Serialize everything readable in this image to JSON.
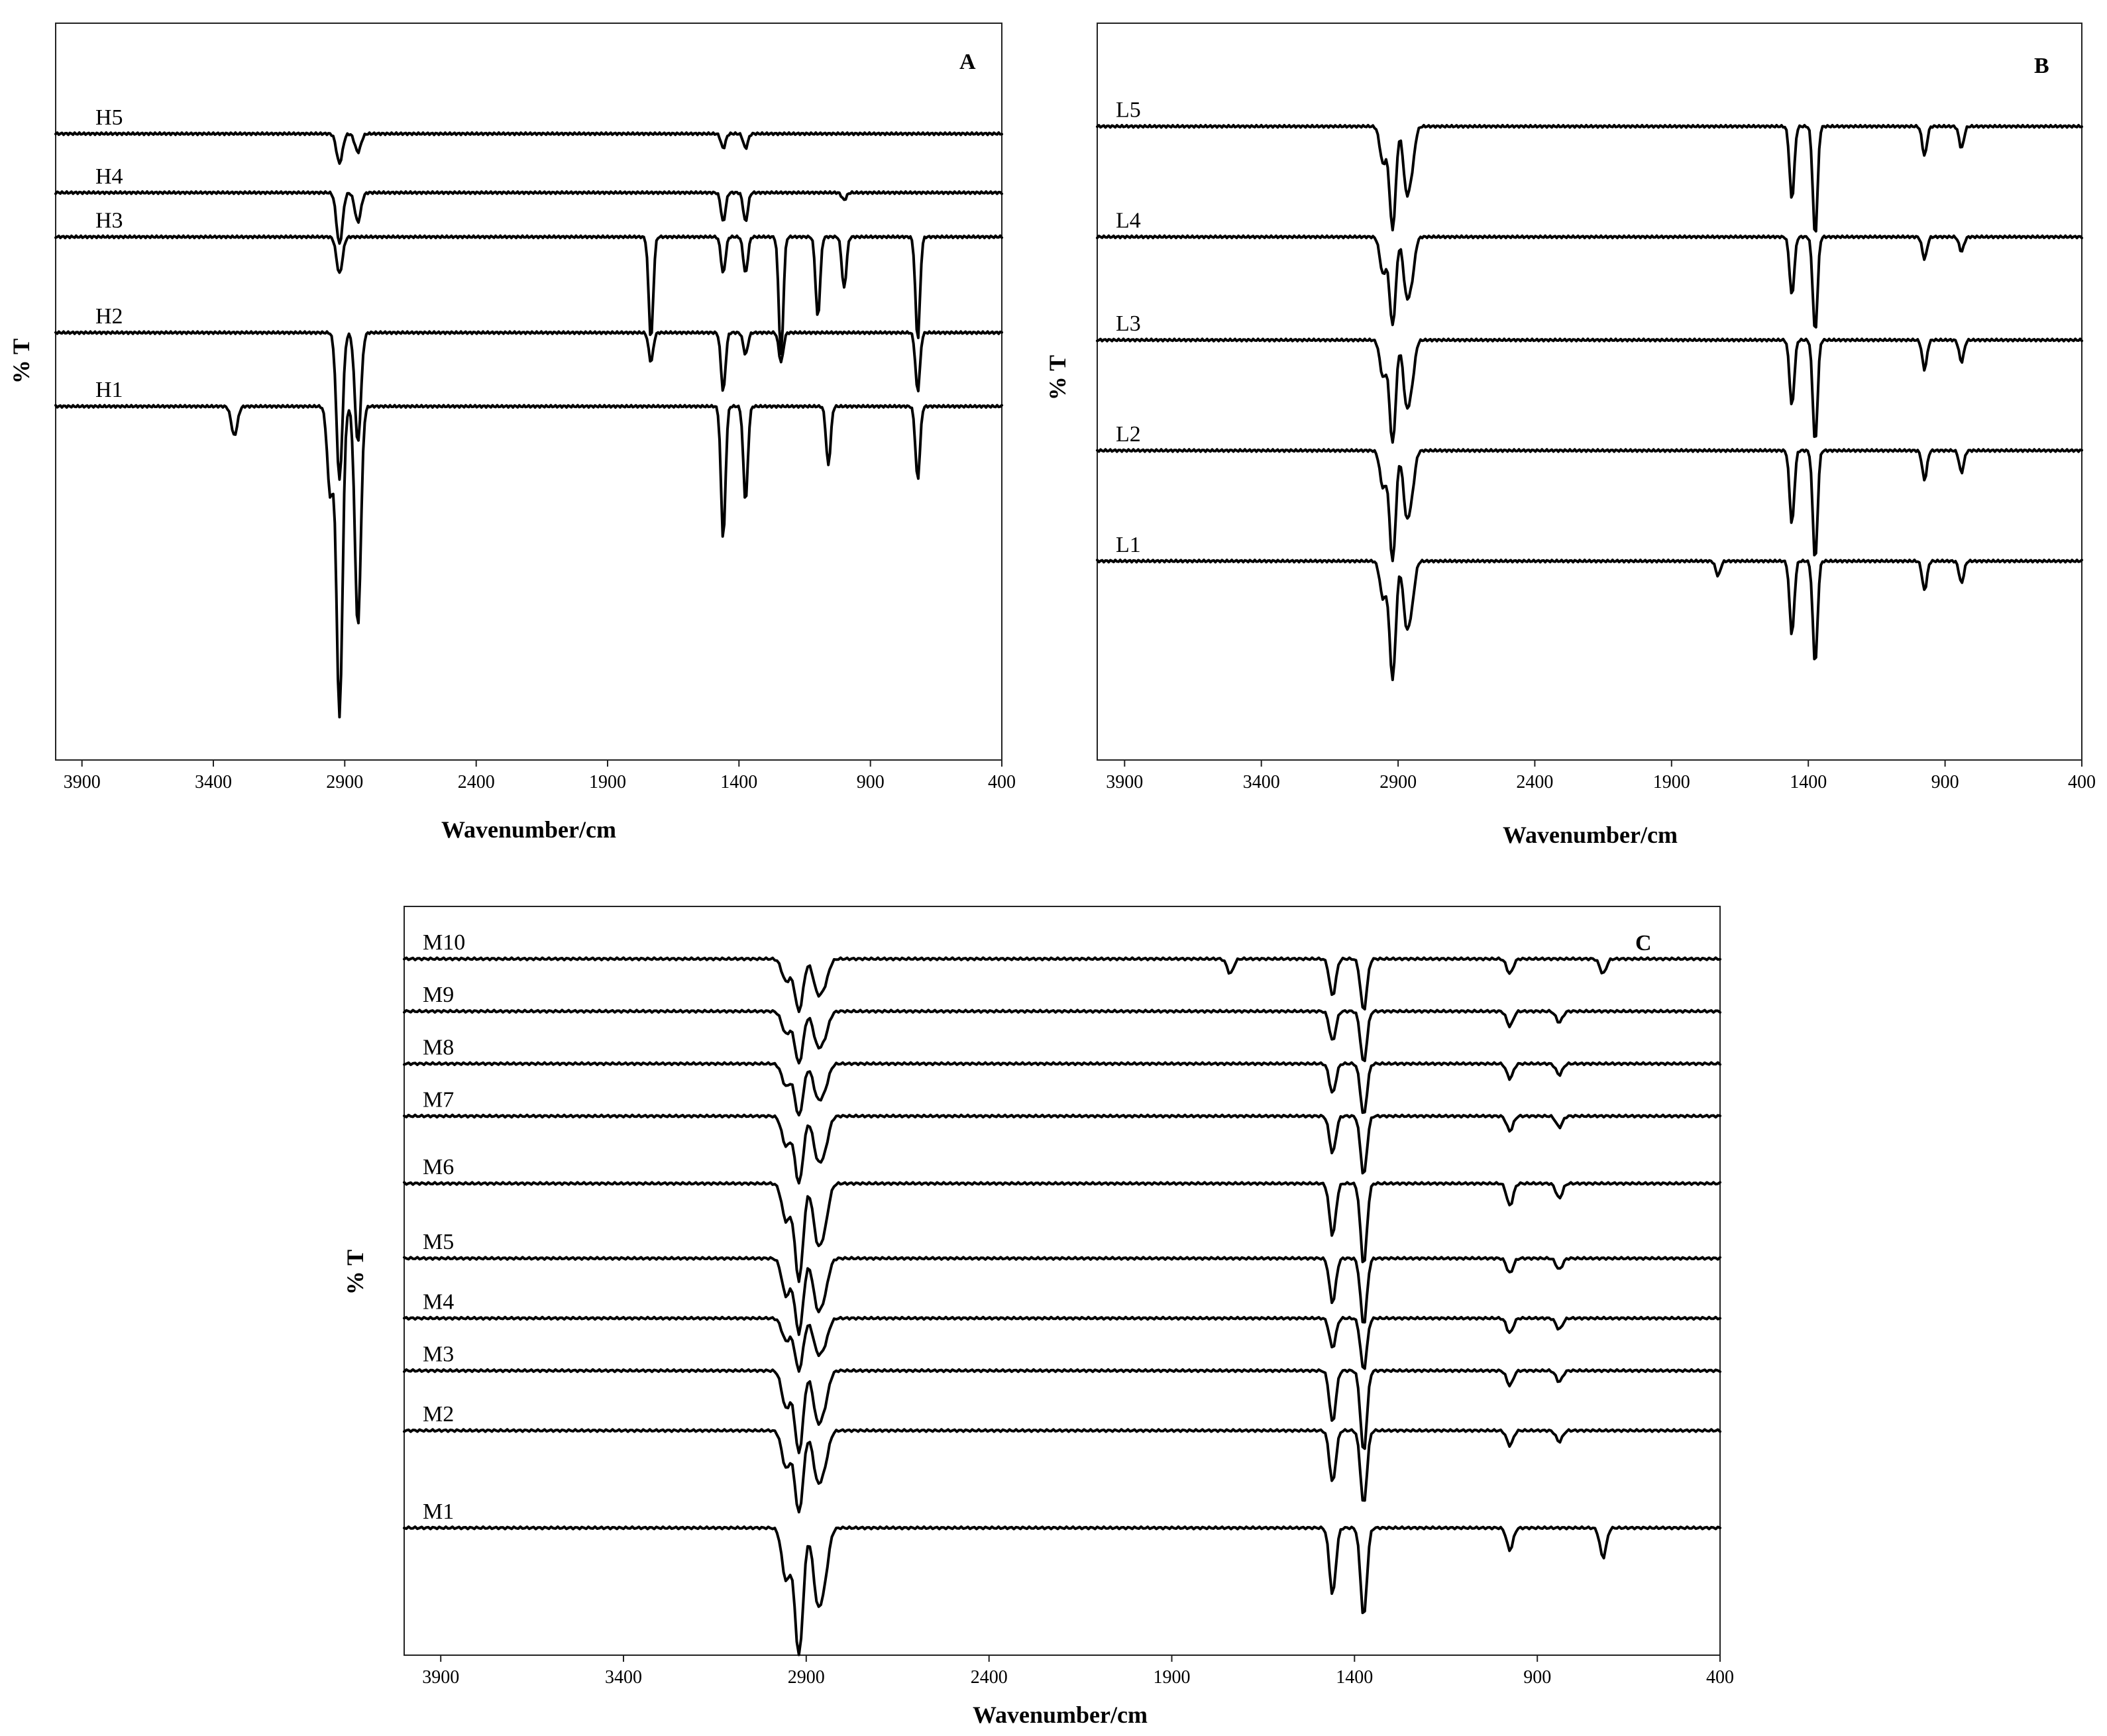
{
  "chart_data": [
    {
      "type": "line",
      "panel": "A",
      "xlabel": "Wavenumber/cm",
      "ylabel": "% T",
      "xlim": [
        4000,
        400
      ],
      "x_reversed": true,
      "xticks": [
        3900,
        3400,
        2900,
        2400,
        1900,
        1400,
        900,
        400
      ],
      "ylim": [
        0,
        100
      ],
      "grid": false,
      "legend": "inline labels",
      "series": [
        {
          "name": "H5",
          "baseline": 85,
          "peaks": [
            [
              2920,
              4
            ],
            [
              2850,
              2.5
            ],
            [
              1460,
              2
            ],
            [
              1375,
              2
            ]
          ]
        },
        {
          "name": "H4",
          "baseline": 77,
          "peaks": [
            [
              2920,
              7
            ],
            [
              2850,
              4
            ],
            [
              1460,
              4
            ],
            [
              1375,
              4
            ],
            [
              1000,
              1
            ]
          ]
        },
        {
          "name": "H3",
          "baseline": 71,
          "peaks": [
            [
              2920,
              5
            ],
            [
              1735,
              14
            ],
            [
              1460,
              5
            ],
            [
              1375,
              5
            ],
            [
              1240,
              16
            ],
            [
              1100,
              11
            ],
            [
              1000,
              7
            ],
            [
              720,
              14
            ]
          ]
        },
        {
          "name": "H2",
          "baseline": 58,
          "peaks": [
            [
              2920,
              20
            ],
            [
              2850,
              15
            ],
            [
              1735,
              4
            ],
            [
              1460,
              8
            ],
            [
              1375,
              3
            ],
            [
              1240,
              4
            ],
            [
              720,
              8
            ]
          ]
        },
        {
          "name": "H1",
          "baseline": 48,
          "peaks": [
            [
              3320,
              4
            ],
            [
              2955,
              12
            ],
            [
              2920,
              42
            ],
            [
              2850,
              30
            ],
            [
              1460,
              18
            ],
            [
              1375,
              13
            ],
            [
              1060,
              8
            ],
            [
              720,
              10
            ]
          ]
        }
      ]
    },
    {
      "type": "line",
      "panel": "B",
      "xlabel": "Wavenumber/cm",
      "ylabel": "% T",
      "xlim": [
        4000,
        400
      ],
      "x_reversed": true,
      "xticks": [
        3900,
        3400,
        2900,
        2400,
        1900,
        1400,
        900,
        400
      ],
      "ylim": [
        0,
        100
      ],
      "grid": false,
      "legend": "inline labels",
      "series": [
        {
          "name": "L5",
          "baseline": 86,
          "peaks": [
            [
              2955,
              5
            ],
            [
              2920,
              14
            ],
            [
              2870,
              8
            ],
            [
              2850,
              5
            ],
            [
              1460,
              10
            ],
            [
              1375,
              15
            ],
            [
              975,
              4
            ],
            [
              840,
              3
            ]
          ]
        },
        {
          "name": "L4",
          "baseline": 71,
          "peaks": [
            [
              2955,
              5
            ],
            [
              2920,
              12
            ],
            [
              2870,
              7
            ],
            [
              2850,
              5
            ],
            [
              1460,
              8
            ],
            [
              1375,
              13
            ],
            [
              975,
              3
            ],
            [
              840,
              2
            ]
          ]
        },
        {
          "name": "L3",
          "baseline": 57,
          "peaks": [
            [
              2955,
              5
            ],
            [
              2920,
              14
            ],
            [
              2870,
              8
            ],
            [
              2850,
              5
            ],
            [
              1460,
              9
            ],
            [
              1375,
              14
            ],
            [
              975,
              4
            ],
            [
              840,
              3
            ]
          ]
        },
        {
          "name": "L2",
          "baseline": 42,
          "peaks": [
            [
              2955,
              5
            ],
            [
              2920,
              15
            ],
            [
              2870,
              8
            ],
            [
              2850,
              5
            ],
            [
              1460,
              10
            ],
            [
              1375,
              15
            ],
            [
              975,
              4
            ],
            [
              840,
              3
            ]
          ]
        },
        {
          "name": "L1",
          "baseline": 27,
          "peaks": [
            [
              2955,
              5
            ],
            [
              2920,
              16
            ],
            [
              2870,
              8
            ],
            [
              2850,
              5
            ],
            [
              1730,
              2
            ],
            [
              1460,
              10
            ],
            [
              1375,
              14
            ],
            [
              975,
              4
            ],
            [
              840,
              3
            ]
          ]
        }
      ]
    },
    {
      "type": "line",
      "panel": "C",
      "xlabel": "Wavenumber/cm",
      "ylabel": "% T",
      "xlim": [
        4000,
        400
      ],
      "x_reversed": true,
      "xticks": [
        3900,
        3400,
        2900,
        2400,
        1900,
        1400,
        900,
        400
      ],
      "ylim": [
        0,
        100
      ],
      "grid": false,
      "legend": "inline labels",
      "series": [
        {
          "name": "M10",
          "baseline": 93,
          "peaks": [
            [
              2955,
              3
            ],
            [
              2920,
              7
            ],
            [
              2870,
              4
            ],
            [
              2850,
              3
            ],
            [
              1740,
              2
            ],
            [
              1460,
              5
            ],
            [
              1375,
              7
            ],
            [
              975,
              2
            ],
            [
              720,
              2
            ]
          ]
        },
        {
          "name": "M9",
          "baseline": 86,
          "peaks": [
            [
              2955,
              3
            ],
            [
              2920,
              7
            ],
            [
              2870,
              4
            ],
            [
              2850,
              3
            ],
            [
              1460,
              4
            ],
            [
              1375,
              7
            ],
            [
              975,
              2
            ],
            [
              840,
              1.5
            ]
          ]
        },
        {
          "name": "M8",
          "baseline": 79,
          "peaks": [
            [
              2955,
              3
            ],
            [
              2920,
              7
            ],
            [
              2870,
              4
            ],
            [
              2850,
              3
            ],
            [
              1460,
              4
            ],
            [
              1375,
              7
            ],
            [
              975,
              2
            ],
            [
              840,
              1.5
            ]
          ]
        },
        {
          "name": "M7",
          "baseline": 72,
          "peaks": [
            [
              2955,
              4
            ],
            [
              2920,
              9
            ],
            [
              2870,
              5
            ],
            [
              2850,
              4
            ],
            [
              1460,
              5
            ],
            [
              1375,
              8
            ],
            [
              975,
              2
            ],
            [
              840,
              1.5
            ]
          ]
        },
        {
          "name": "M6",
          "baseline": 63,
          "peaks": [
            [
              2955,
              5
            ],
            [
              2920,
              13
            ],
            [
              2870,
              7
            ],
            [
              2850,
              5
            ],
            [
              1460,
              7
            ],
            [
              1375,
              11
            ],
            [
              975,
              3
            ],
            [
              840,
              2
            ]
          ]
        },
        {
          "name": "M5",
          "baseline": 53,
          "peaks": [
            [
              2955,
              5
            ],
            [
              2920,
              10
            ],
            [
              2870,
              6
            ],
            [
              2850,
              4
            ],
            [
              1460,
              6
            ],
            [
              1375,
              9
            ],
            [
              975,
              2
            ],
            [
              840,
              1.5
            ]
          ]
        },
        {
          "name": "M4",
          "baseline": 45,
          "peaks": [
            [
              2955,
              3
            ],
            [
              2920,
              7
            ],
            [
              2870,
              4
            ],
            [
              2850,
              3
            ],
            [
              1460,
              4
            ],
            [
              1375,
              7
            ],
            [
              975,
              2
            ],
            [
              840,
              1.5
            ]
          ]
        },
        {
          "name": "M3",
          "baseline": 38,
          "peaks": [
            [
              2955,
              5
            ],
            [
              2920,
              11
            ],
            [
              2870,
              6
            ],
            [
              2850,
              4
            ],
            [
              1460,
              7
            ],
            [
              1375,
              11
            ],
            [
              975,
              2
            ],
            [
              840,
              1.5
            ]
          ]
        },
        {
          "name": "M2",
          "baseline": 30,
          "peaks": [
            [
              2955,
              5
            ],
            [
              2920,
              11
            ],
            [
              2870,
              6
            ],
            [
              2850,
              4
            ],
            [
              1460,
              7
            ],
            [
              1375,
              10
            ],
            [
              975,
              2
            ],
            [
              840,
              1.5
            ]
          ]
        },
        {
          "name": "M1",
          "baseline": 17,
          "peaks": [
            [
              2955,
              7
            ],
            [
              2920,
              17
            ],
            [
              2870,
              9
            ],
            [
              2850,
              6
            ],
            [
              1460,
              9
            ],
            [
              1375,
              12
            ],
            [
              975,
              3
            ],
            [
              720,
              4
            ]
          ]
        }
      ]
    }
  ]
}
